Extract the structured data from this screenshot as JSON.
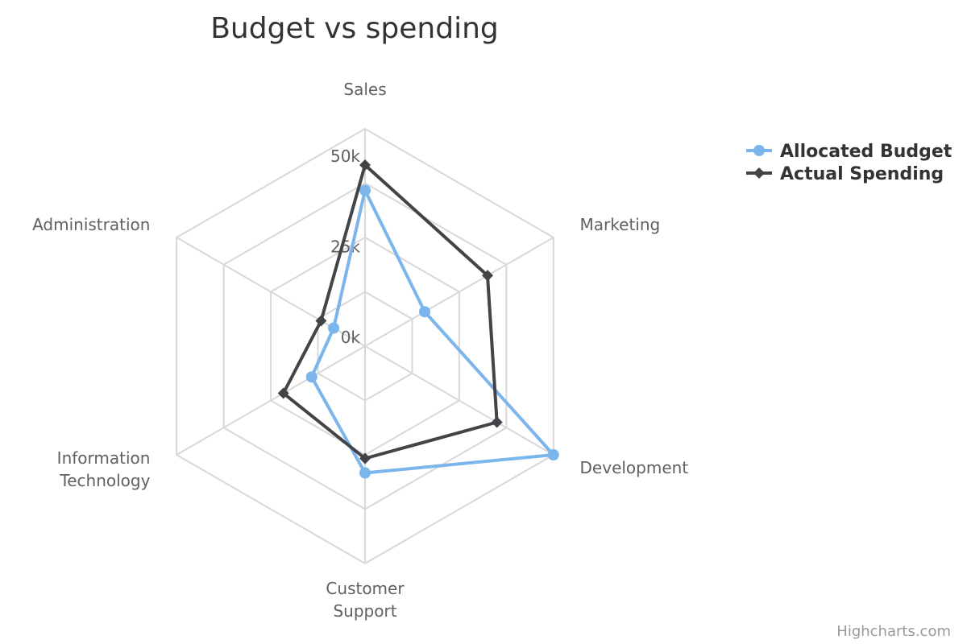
{
  "title": "Budget vs spending",
  "credits": "Highcharts.com",
  "chart_data": {
    "type": "line",
    "polar": true,
    "title": "Budget vs spending",
    "categories": [
      "Sales",
      "Marketing",
      "Development",
      "Customer Support",
      "Information Technology",
      "Administration"
    ],
    "ylim": [
      0,
      60000
    ],
    "yticks": [
      0,
      25000,
      50000
    ],
    "ytick_labels": [
      "0k",
      "25k",
      "50k"
    ],
    "grid": true,
    "legend_position": "top-right",
    "series": [
      {
        "name": "Allocated Budget",
        "color": "#7cb5ec",
        "marker": "circle",
        "values": [
          43000,
          19000,
          60000,
          35000,
          17000,
          10000
        ]
      },
      {
        "name": "Actual Spending",
        "color": "#434348",
        "marker": "diamond",
        "values": [
          50000,
          39000,
          42000,
          31000,
          26000,
          14000
        ]
      }
    ]
  }
}
